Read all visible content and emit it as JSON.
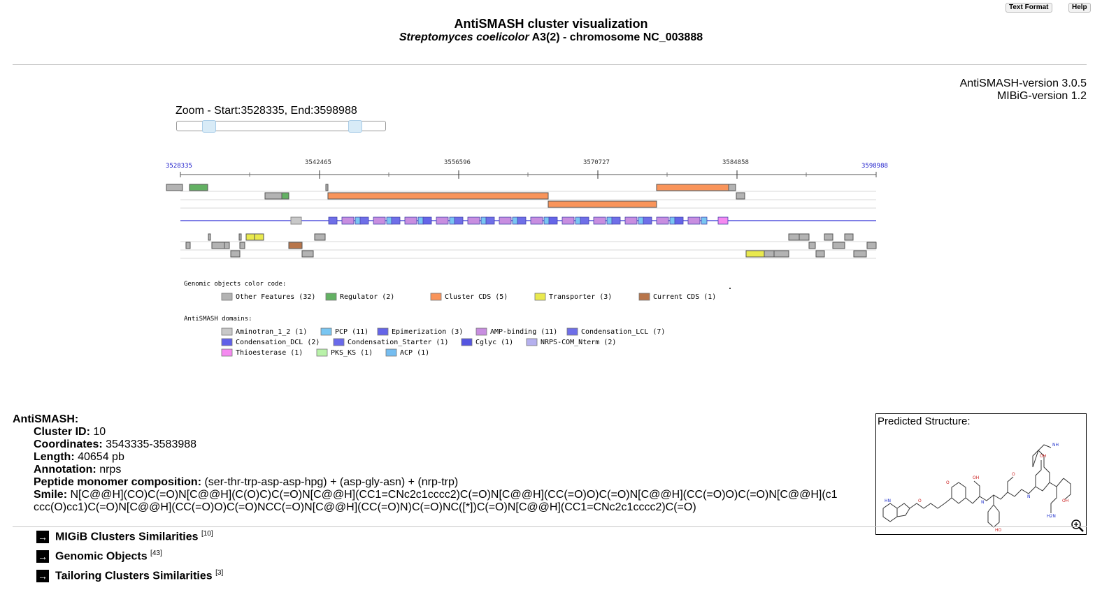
{
  "header": {
    "text_format_label": "Text Format",
    "help_label": "Help",
    "title": "AntiSMASH cluster visualization",
    "subtitle_italic": "Streptomyces coelicolor",
    "subtitle_rest": " A3(2) - chromosome NC_003888",
    "antismash_version": "AntiSMASH-version 3.0.5",
    "mibig_version": "MIBiG-version 1.2"
  },
  "zoom": {
    "label": "Zoom - Start:3528335, End:3598988",
    "start": 3528335,
    "end": 3598988
  },
  "ruler": {
    "start_label": "3528335",
    "end_label": "3598988",
    "ticks": [
      "3542465",
      "3556596",
      "3570727",
      "3584858"
    ]
  },
  "genomic_legend": {
    "title": "Genomic objects color code:",
    "items": [
      {
        "label": "Other Features (32)",
        "color": "#b3b3b3"
      },
      {
        "label": "Regulator (2)",
        "color": "#63b163"
      },
      {
        "label": "Cluster CDS (5)",
        "color": "#f9945a"
      },
      {
        "label": "Transporter (3)",
        "color": "#e9e94e"
      },
      {
        "label": "Current CDS (1)",
        "color": "#b8754a"
      }
    ]
  },
  "domain_legend": {
    "title": "AntiSMASH domains:",
    "items": [
      {
        "label": "Aminotran_1_2 (1)",
        "color": "#c8c8c8"
      },
      {
        "label": "PCP (11)",
        "color": "#79c6f2"
      },
      {
        "label": "Epimerization (3)",
        "color": "#6565e8"
      },
      {
        "label": "AMP-binding (11)",
        "color": "#c88ee0"
      },
      {
        "label": "Condensation_LCL (7)",
        "color": "#6f6fe8"
      },
      {
        "label": "Condensation_DCL (2)",
        "color": "#6060e8"
      },
      {
        "label": "Condensation_Starter (1)",
        "color": "#6a6aea"
      },
      {
        "label": "Cglyc (1)",
        "color": "#5555e0"
      },
      {
        "label": "NRPS-COM_Nterm (2)",
        "color": "#b5b0ee"
      },
      {
        "label": "Thioesterase (1)",
        "color": "#f58af0"
      },
      {
        "label": "PKS_KS (1)",
        "color": "#b9f2a9"
      },
      {
        "label": "ACP (1)",
        "color": "#75bdf0"
      }
    ]
  },
  "antismash": {
    "heading": "AntiSMASH:",
    "cluster_id_label": "Cluster ID:",
    "cluster_id": "10",
    "coordinates_label": "Coordinates:",
    "coordinates": "3543335-3583988",
    "length_label": "Length:",
    "length": "40654 pb",
    "annotation_label": "Annotation:",
    "annotation": "nrps",
    "peptide_label": "Peptide monomer composition:",
    "peptide": "(ser-thr-trp-asp-asp-hpg) + (asp-gly-asn) + (nrp-trp)",
    "smile_label": "Smile:",
    "smile": "N[C@@H](CO)C(=O)N[C@@H](C(O)C)C(=O)N[C@@H](CC1=CNc2c1cccc2)C(=O)N[C@@H](CC(=O)O)C(=O)N[C@@H](CC(=O)O)C(=O)N[C@@H](c1ccc(O)cc1)C(=O)N[C@@H](CC(=O)O)C(=O)NCC(=O)N[C@@H](CC(=O)N)C(=O)NC([*])C(=O)N[C@@H](CC1=CNc2c1cccc2)C(=O)"
  },
  "predicted": {
    "label": "Predicted Structure:"
  },
  "expanders": [
    {
      "label": "MIGiB Clusters Similarities",
      "count": "[10]"
    },
    {
      "label": "Genomic Objects",
      "count": "[43]"
    },
    {
      "label": "Tailoring Clusters Similarities",
      "count": "[3]"
    }
  ]
}
